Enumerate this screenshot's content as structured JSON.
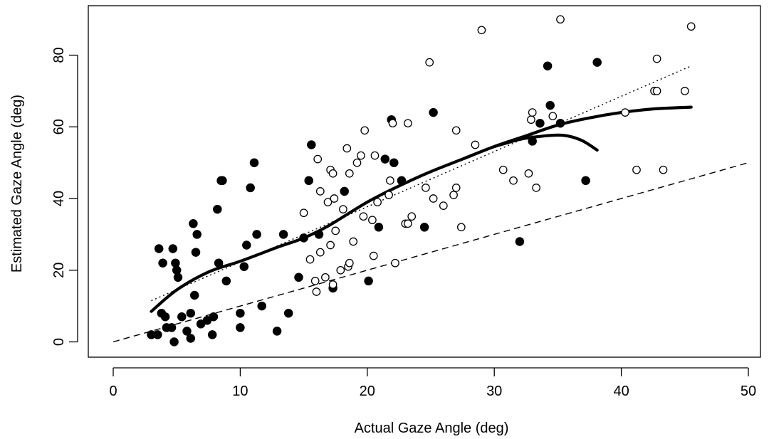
{
  "chart_data": {
    "type": "scatter",
    "xlabel": "Actual Gaze Angle (deg)",
    "ylabel": "Estimated Gaze Angle (deg)",
    "xlim": [
      -2,
      52
    ],
    "ylim": [
      -4,
      94
    ],
    "xticks": [
      0,
      10,
      20,
      30,
      40,
      50
    ],
    "yticks": [
      0,
      20,
      40,
      60,
      80
    ],
    "grid": false,
    "legend": "none",
    "series": [
      {
        "marker": "filled-circle",
        "points": [
          [
            3.0,
            2
          ],
          [
            3.5,
            2
          ],
          [
            3.6,
            26
          ],
          [
            3.8,
            8
          ],
          [
            3.9,
            22
          ],
          [
            4.1,
            7
          ],
          [
            4.2,
            4
          ],
          [
            4.6,
            4
          ],
          [
            4.7,
            26
          ],
          [
            4.8,
            0
          ],
          [
            4.9,
            22
          ],
          [
            5.0,
            20
          ],
          [
            5.1,
            18
          ],
          [
            5.4,
            7
          ],
          [
            5.8,
            3
          ],
          [
            6.1,
            8
          ],
          [
            6.1,
            1
          ],
          [
            6.3,
            33
          ],
          [
            6.4,
            13
          ],
          [
            6.5,
            25
          ],
          [
            6.6,
            30
          ],
          [
            6.9,
            5
          ],
          [
            7.4,
            6
          ],
          [
            7.8,
            2
          ],
          [
            7.9,
            7
          ],
          [
            8.2,
            37
          ],
          [
            8.3,
            22
          ],
          [
            8.5,
            45
          ],
          [
            8.6,
            45
          ],
          [
            8.9,
            17
          ],
          [
            10.0,
            8
          ],
          [
            10.0,
            4
          ],
          [
            10.3,
            21
          ],
          [
            10.5,
            27
          ],
          [
            10.8,
            43
          ],
          [
            11.1,
            50
          ],
          [
            11.3,
            30
          ],
          [
            11.7,
            10
          ],
          [
            12.9,
            3
          ],
          [
            13.4,
            30
          ],
          [
            13.8,
            8
          ],
          [
            14.6,
            18
          ],
          [
            15.0,
            29
          ],
          [
            15.4,
            45
          ],
          [
            15.6,
            55
          ],
          [
            16.2,
            30
          ],
          [
            17.3,
            15
          ],
          [
            18.2,
            42
          ],
          [
            20.1,
            17
          ],
          [
            20.9,
            32
          ],
          [
            21.4,
            51
          ],
          [
            21.9,
            62
          ],
          [
            22.1,
            50
          ],
          [
            22.7,
            45
          ],
          [
            24.5,
            32
          ],
          [
            25.2,
            64
          ],
          [
            32.0,
            28
          ],
          [
            33.0,
            56
          ],
          [
            33.6,
            61
          ],
          [
            34.2,
            77
          ],
          [
            34.4,
            66
          ],
          [
            35.2,
            61
          ],
          [
            37.2,
            45
          ],
          [
            38.1,
            78
          ]
        ]
      },
      {
        "marker": "open-circle",
        "points": [
          [
            15.0,
            36
          ],
          [
            15.5,
            23
          ],
          [
            15.9,
            17
          ],
          [
            16.0,
            14
          ],
          [
            16.1,
            51
          ],
          [
            16.3,
            42
          ],
          [
            16.3,
            25
          ],
          [
            16.7,
            18
          ],
          [
            16.9,
            39
          ],
          [
            17.1,
            27
          ],
          [
            17.1,
            48
          ],
          [
            17.3,
            47
          ],
          [
            17.3,
            16
          ],
          [
            17.4,
            40
          ],
          [
            17.5,
            31
          ],
          [
            17.9,
            20
          ],
          [
            18.1,
            37
          ],
          [
            18.4,
            54
          ],
          [
            18.5,
            21
          ],
          [
            18.6,
            22
          ],
          [
            18.6,
            47
          ],
          [
            18.9,
            28
          ],
          [
            19.2,
            50
          ],
          [
            19.5,
            52
          ],
          [
            19.7,
            35
          ],
          [
            19.8,
            59
          ],
          [
            20.4,
            34
          ],
          [
            20.5,
            24
          ],
          [
            20.6,
            52
          ],
          [
            20.8,
            39
          ],
          [
            21.7,
            41
          ],
          [
            21.8,
            45
          ],
          [
            22.0,
            61
          ],
          [
            22.2,
            22
          ],
          [
            23.0,
            33
          ],
          [
            23.2,
            61
          ],
          [
            23.2,
            33
          ],
          [
            23.5,
            35
          ],
          [
            24.6,
            43
          ],
          [
            24.9,
            78
          ],
          [
            25.2,
            40
          ],
          [
            26.0,
            38
          ],
          [
            26.8,
            41
          ],
          [
            27.0,
            43
          ],
          [
            27.0,
            59
          ],
          [
            27.4,
            32
          ],
          [
            28.5,
            55
          ],
          [
            29.0,
            87
          ],
          [
            30.7,
            48
          ],
          [
            31.5,
            45
          ],
          [
            32.7,
            47
          ],
          [
            32.9,
            62
          ],
          [
            33.0,
            64
          ],
          [
            33.3,
            43
          ],
          [
            34.6,
            63
          ],
          [
            35.2,
            90
          ],
          [
            40.3,
            64
          ],
          [
            41.2,
            48
          ],
          [
            42.6,
            70
          ],
          [
            42.8,
            70
          ],
          [
            42.8,
            79
          ],
          [
            43.3,
            48
          ],
          [
            45.0,
            70
          ],
          [
            45.5,
            88
          ]
        ]
      }
    ],
    "reference_lines": [
      {
        "style": "dashed",
        "description": "y = x",
        "x": [
          0,
          50
        ],
        "y": [
          0,
          50
        ]
      },
      {
        "style": "dotted",
        "description": "linear fit",
        "x": [
          3.0,
          45.5
        ],
        "y": [
          11.5,
          77
        ]
      }
    ],
    "smooth_curves": [
      {
        "style": "thick-solid",
        "x": [
          3.0,
          5,
          7.5,
          10,
          13,
          15,
          17,
          20,
          22.5,
          25,
          27.5,
          30,
          32.5,
          35,
          37.5,
          40,
          42.5,
          45.5
        ],
        "y": [
          8.5,
          14.5,
          19.5,
          22.5,
          26.5,
          29,
          32.5,
          39,
          43.5,
          47.5,
          51,
          54.5,
          57.5,
          60.5,
          62.5,
          64,
          65,
          65.5
        ]
      },
      {
        "style": "thick-solid",
        "x": [
          30,
          32,
          33.5,
          35,
          36,
          37,
          38.1
        ],
        "y": [
          54.5,
          56.5,
          57.3,
          57.7,
          57.3,
          56,
          53.5
        ]
      }
    ]
  }
}
